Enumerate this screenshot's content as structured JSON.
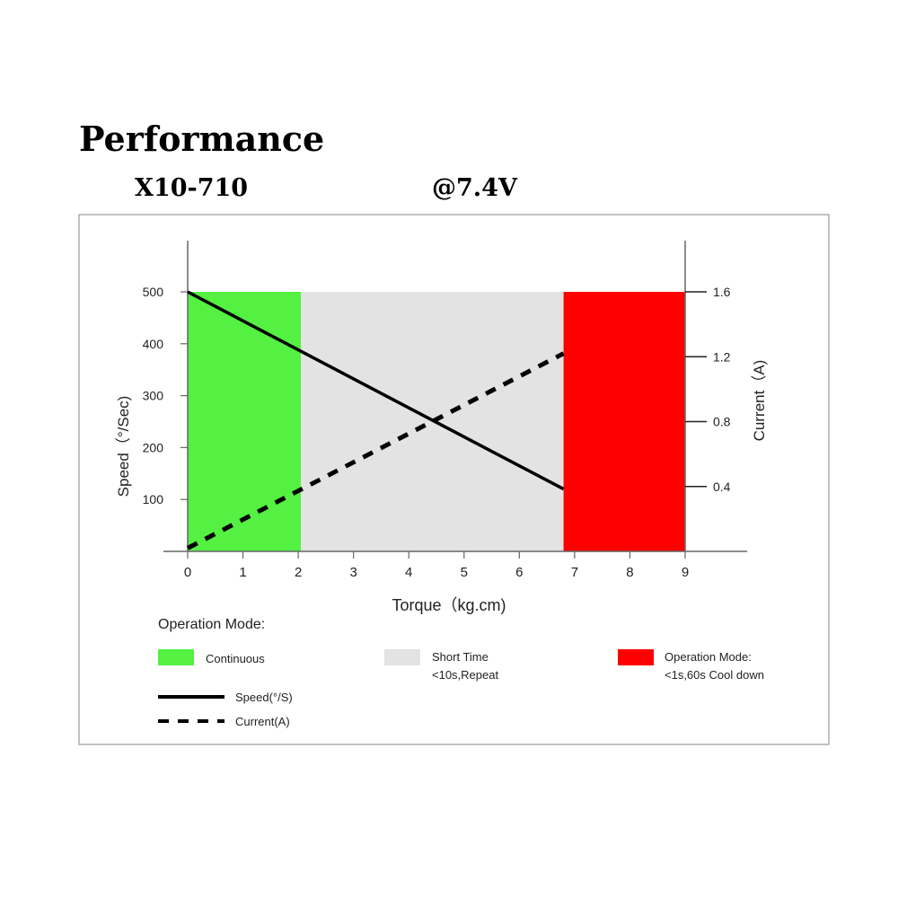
{
  "header": {
    "title": "Performance",
    "model": "X10-710",
    "voltage": "@7.4V"
  },
  "chart_data": {
    "type": "line",
    "xlabel": "Torque（kg.cm)",
    "ylabel": "Speed（°/Sec)",
    "y2label": "Current（A)",
    "xlim": [
      0,
      9
    ],
    "ylim": [
      0,
      500
    ],
    "y2lim": [
      0,
      1.6
    ],
    "x_ticks": [
      0,
      1,
      2,
      3,
      4,
      5,
      6,
      7,
      8,
      9
    ],
    "y_ticks": [
      100,
      200,
      300,
      400,
      500
    ],
    "y2_ticks": [
      0.4,
      0.8,
      1.2,
      1.6
    ],
    "grid": false,
    "series": [
      {
        "name": "Speed(°/S)",
        "axis": "left",
        "style": "solid",
        "x": [
          0,
          6.8
        ],
        "y": [
          500,
          120
        ]
      },
      {
        "name": "Current(A)",
        "axis": "right",
        "style": "dashed",
        "x": [
          0,
          6.8
        ],
        "y": [
          0.02,
          1.22
        ]
      }
    ],
    "regions": [
      {
        "x0": 0,
        "x1": 2.05,
        "color": "#54f042"
      },
      {
        "x0": 2.05,
        "x1": 6.8,
        "color": "#e3e3e3"
      },
      {
        "x0": 6.8,
        "x1": 9,
        "color": "#ff0000"
      }
    ],
    "legend": {
      "heading": "Operation Mode:",
      "modes": [
        {
          "label": "Continuous",
          "sublabel": "",
          "color": "#54f042"
        },
        {
          "label": "Short Time",
          "sublabel": "<10s,Repeat",
          "color": "#e3e3e3"
        },
        {
          "label": "Operation Mode:",
          "sublabel": "<1s,60s Cool down",
          "color": "#ff0000"
        }
      ],
      "lines": [
        {
          "label": "Speed(°/S)",
          "style": "solid"
        },
        {
          "label": "Current(A)",
          "style": "dashed"
        }
      ]
    }
  }
}
